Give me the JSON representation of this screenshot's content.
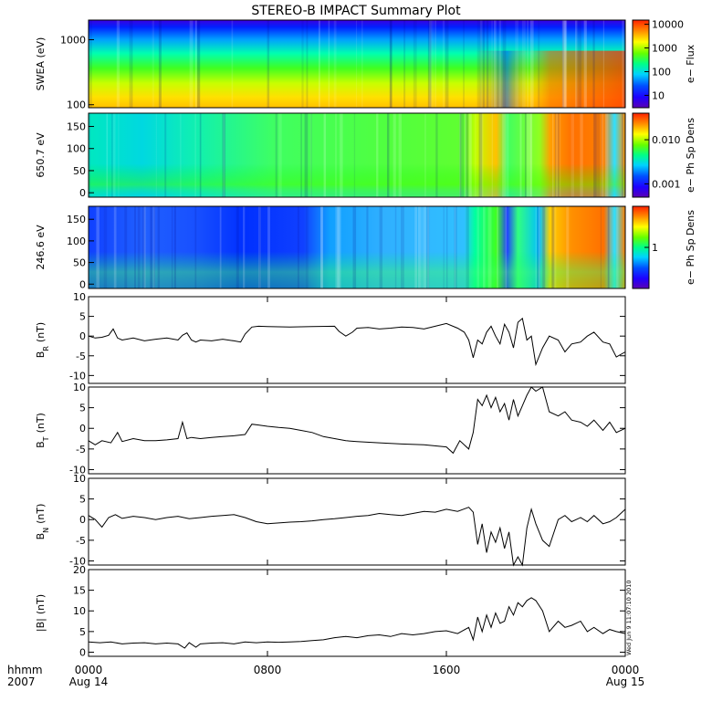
{
  "chart_data": {
    "type": "line",
    "title": "STEREO-B IMPACT Summary Plot",
    "time_axis": {
      "row1_label": "hhmm",
      "row2_label": "2007",
      "range_hours": [
        0,
        24
      ],
      "ticks": [
        {
          "hour": 0,
          "label": "0000",
          "date": "Aug 14"
        },
        {
          "hour": 8,
          "label": "0800",
          "date": ""
        },
        {
          "hour": 16,
          "label": "1600",
          "date": ""
        },
        {
          "hour": 24,
          "label": "0000",
          "date": "Aug 15"
        }
      ]
    },
    "timestamp_note": "Wed Jun 9 11:07:10 2010",
    "spectrograms": [
      {
        "id": "swea",
        "type": "heatmap",
        "ylabel": "SWEA (eV)",
        "ylim": [
          90,
          2000
        ],
        "yscale": "log",
        "yticks": [
          {
            "v": 1000,
            "label": "1000"
          },
          {
            "v": 100,
            "label": "100"
          }
        ],
        "colorbar": {
          "label": "e− Flux",
          "scale": "log",
          "range": [
            3,
            15000
          ],
          "ticks": [
            {
              "v": 10000,
              "label": "10000"
            },
            {
              "v": 1000,
              "label": "1000"
            },
            {
              "v": 100,
              "label": "100"
            },
            {
              "v": 10,
              "label": "10"
            }
          ]
        }
      },
      {
        "id": "pad650",
        "type": "heatmap",
        "ylabel": "650.7 eV",
        "ylim": [
          -10,
          180
        ],
        "yticks": [
          {
            "v": 150,
            "label": "150"
          },
          {
            "v": 100,
            "label": "100"
          },
          {
            "v": 50,
            "label": "50"
          },
          {
            "v": 0,
            "label": "0"
          }
        ],
        "colorbar": {
          "label": "e− Ph Sp Dens",
          "scale": "log",
          "range": [
            0.0005,
            0.04
          ],
          "ticks": [
            {
              "v": 0.01,
              "label": "0.010"
            },
            {
              "v": 0.001,
              "label": "0.001"
            }
          ]
        }
      },
      {
        "id": "pad246",
        "type": "heatmap",
        "ylabel": "246.6 eV",
        "ylim": [
          -10,
          180
        ],
        "yticks": [
          {
            "v": 150,
            "label": "150"
          },
          {
            "v": 100,
            "label": "100"
          },
          {
            "v": 50,
            "label": "50"
          },
          {
            "v": 0,
            "label": "0"
          }
        ],
        "colorbar": {
          "label": "e− Ph Sp Dens",
          "scale": "log",
          "range": [
            0.1,
            10
          ],
          "ticks": [
            {
              "v": 1,
              "label": "1"
            }
          ]
        }
      }
    ],
    "series": [
      {
        "id": "br",
        "name": "B",
        "sub": "R",
        "unit": "(nT)",
        "ylim": [
          -12,
          10
        ],
        "yticks": [
          10,
          5,
          0,
          -5,
          -10
        ],
        "x": [
          0,
          0.3,
          0.6,
          0.9,
          1.1,
          1.3,
          1.5,
          2,
          2.5,
          3,
          3.5,
          4,
          4.2,
          4.4,
          4.6,
          4.8,
          5,
          5.5,
          6,
          6.5,
          6.8,
          7,
          7.3,
          7.6,
          8,
          9,
          10,
          11,
          11.2,
          11.5,
          11.8,
          12,
          12.5,
          13,
          13.5,
          14,
          14.5,
          15,
          15.5,
          16,
          16.5,
          16.8,
          17,
          17.2,
          17.4,
          17.6,
          17.8,
          18,
          18.2,
          18.4,
          18.6,
          18.8,
          19,
          19.2,
          19.4,
          19.6,
          19.8,
          20,
          20.3,
          20.6,
          21,
          21.3,
          21.6,
          22,
          22.3,
          22.6,
          23,
          23.3,
          23.6,
          24
        ],
        "y": [
          0,
          -0.5,
          -0.3,
          0.2,
          1.8,
          -0.5,
          -1,
          -0.5,
          -1.2,
          -0.8,
          -0.5,
          -1,
          0.2,
          0.8,
          -1,
          -1.5,
          -1,
          -1.2,
          -0.8,
          -1.2,
          -1.5,
          0.5,
          2.3,
          2.5,
          2.4,
          2.3,
          2.4,
          2.5,
          1.2,
          0,
          1,
          2,
          2.2,
          1.8,
          2,
          2.3,
          2.2,
          1.8,
          2.5,
          3.2,
          2,
          1,
          -1,
          -5.5,
          -1,
          -2,
          1,
          2.5,
          0,
          -2,
          3,
          1,
          -3,
          3.5,
          4.5,
          -1,
          0,
          -7.2,
          -3,
          0,
          -1,
          -4,
          -2,
          -1.5,
          0,
          1,
          -1.5,
          -2,
          -5.3,
          -4
        ]
      },
      {
        "id": "bt",
        "name": "B",
        "sub": "T",
        "unit": "(nT)",
        "ylim": [
          -11,
          10
        ],
        "yticks": [
          10,
          5,
          0,
          -5,
          -10
        ],
        "x": [
          0,
          0.3,
          0.6,
          1,
          1.3,
          1.5,
          2,
          2.5,
          3,
          3.5,
          4,
          4.2,
          4.4,
          4.6,
          5,
          5.5,
          6,
          6.5,
          7,
          7.3,
          7.6,
          8,
          8.5,
          9,
          9.5,
          10,
          10.5,
          11,
          11.5,
          12,
          13,
          14,
          15,
          16,
          16.3,
          16.6,
          17,
          17.2,
          17.4,
          17.6,
          17.8,
          18,
          18.2,
          18.4,
          18.6,
          18.8,
          19,
          19.2,
          19.4,
          19.6,
          19.8,
          20,
          20.3,
          20.6,
          21,
          21.3,
          21.6,
          22,
          22.3,
          22.6,
          23,
          23.3,
          23.6,
          24
        ],
        "y": [
          -3,
          -4,
          -3,
          -3.5,
          -1,
          -3.2,
          -2.5,
          -3,
          -3,
          -2.8,
          -2.5,
          1.5,
          -2.5,
          -2.2,
          -2.5,
          -2.2,
          -2,
          -1.8,
          -1.5,
          1,
          0.8,
          0.5,
          0.2,
          0,
          -0.5,
          -1,
          -2,
          -2.5,
          -3,
          -3.2,
          -3.5,
          -3.8,
          -4,
          -4.5,
          -6,
          -3,
          -5,
          -1,
          7,
          5.5,
          8,
          5,
          7.5,
          4,
          6,
          2,
          7,
          3,
          5.5,
          8,
          11,
          9,
          10.5,
          4,
          3,
          4,
          2,
          1.5,
          0.5,
          2,
          -0.5,
          1.5,
          -1,
          0
        ]
      },
      {
        "id": "bn",
        "name": "B",
        "sub": "N",
        "unit": "(nT)",
        "ylim": [
          -11,
          10
        ],
        "yticks": [
          10,
          5,
          0,
          -5,
          -10
        ],
        "x": [
          0,
          0.3,
          0.6,
          0.9,
          1.2,
          1.5,
          2,
          2.5,
          3,
          3.5,
          4,
          4.5,
          5,
          5.5,
          6,
          6.5,
          7,
          7.5,
          8,
          8.5,
          9,
          9.5,
          10,
          10.5,
          11,
          11.5,
          12,
          12.5,
          13,
          13.5,
          14,
          14.5,
          15,
          15.5,
          16,
          16.5,
          17,
          17.2,
          17.4,
          17.6,
          17.8,
          18,
          18.2,
          18.4,
          18.6,
          18.8,
          19,
          19.2,
          19.4,
          19.6,
          19.8,
          20,
          20.3,
          20.6,
          21,
          21.3,
          21.6,
          22,
          22.3,
          22.6,
          23,
          23.3,
          23.6,
          24
        ],
        "y": [
          1,
          0,
          -1.8,
          0.5,
          1.2,
          0.3,
          0.8,
          0.5,
          0,
          0.5,
          0.8,
          0.2,
          0.5,
          0.8,
          1,
          1.2,
          0.5,
          -0.5,
          -1,
          -0.8,
          -0.6,
          -0.5,
          -0.3,
          0,
          0.2,
          0.5,
          0.8,
          1,
          1.5,
          1.2,
          1,
          1.5,
          2,
          1.8,
          2.5,
          2,
          3,
          1.8,
          -6,
          -1,
          -8,
          -3,
          -5.5,
          -2,
          -7,
          -3,
          -11,
          -9,
          -11.5,
          -2,
          2.5,
          -1,
          -5,
          -6.5,
          0,
          1,
          -0.5,
          0.5,
          -0.5,
          1,
          -1,
          -0.5,
          0.5,
          2.5
        ]
      },
      {
        "id": "bmag",
        "name": "|B|",
        "sub": "",
        "unit": "(nT)",
        "ylim": [
          -1,
          20
        ],
        "yticks": [
          20,
          15,
          10,
          5,
          0
        ],
        "x": [
          0,
          0.5,
          1,
          1.5,
          2,
          2.5,
          3,
          3.5,
          4,
          4.3,
          4.5,
          4.8,
          5,
          5.5,
          6,
          6.5,
          7,
          7.5,
          8,
          8.5,
          9,
          9.5,
          10,
          10.5,
          11,
          11.5,
          12,
          12.5,
          13,
          13.5,
          14,
          14.5,
          15,
          15.5,
          16,
          16.5,
          17,
          17.2,
          17.4,
          17.6,
          17.8,
          18,
          18.2,
          18.4,
          18.6,
          18.8,
          19,
          19.2,
          19.4,
          19.6,
          19.8,
          20,
          20.3,
          20.6,
          21,
          21.3,
          21.6,
          22,
          22.3,
          22.6,
          23,
          23.3,
          23.6,
          24
        ],
        "y": [
          2.5,
          2.3,
          2.5,
          2,
          2.2,
          2.3,
          2,
          2.2,
          2,
          1,
          2.3,
          1.2,
          2,
          2.2,
          2.3,
          2,
          2.5,
          2.3,
          2.5,
          2.4,
          2.5,
          2.6,
          2.8,
          3,
          3.5,
          3.8,
          3.5,
          4,
          4.2,
          3.8,
          4.5,
          4.2,
          4.5,
          5,
          5.2,
          4.5,
          6,
          3,
          8.5,
          5,
          9,
          6,
          9.5,
          7,
          7.5,
          11,
          9,
          12,
          11,
          12.5,
          13.2,
          12.5,
          10,
          5,
          7.5,
          6,
          6.5,
          7.5,
          5,
          6,
          4.5,
          5.5,
          5,
          4.5
        ]
      }
    ]
  }
}
